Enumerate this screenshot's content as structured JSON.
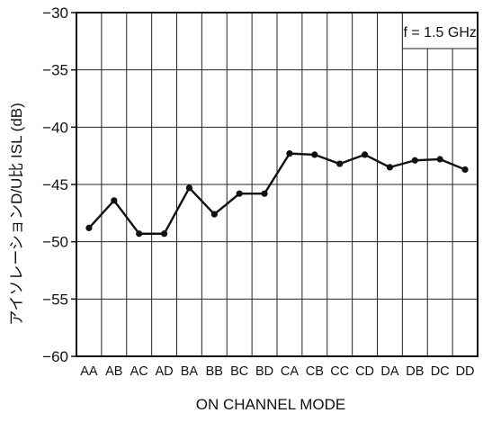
{
  "chart_data": {
    "type": "line",
    "title": "",
    "xlabel": "ON CHANNEL MODE",
    "ylabel": "アイソレーションD/U比 ISL (dB)",
    "ylim": [
      -60,
      -30
    ],
    "yticks": [
      "−30",
      "−35",
      "−40",
      "−45",
      "−50",
      "−55",
      "−60"
    ],
    "ytick_values": [
      -30,
      -35,
      -40,
      -45,
      -50,
      -55,
      -60
    ],
    "categories": [
      "AA",
      "AB",
      "AC",
      "AD",
      "BA",
      "BB",
      "BC",
      "BD",
      "CA",
      "CB",
      "CC",
      "CD",
      "DA",
      "DB",
      "DC",
      "DD"
    ],
    "series": [
      {
        "values": [
          -48.8,
          -46.4,
          -49.3,
          -49.3,
          -45.3,
          -47.6,
          -45.8,
          -45.8,
          -42.3,
          -42.4,
          -43.2,
          -42.4,
          -43.5,
          -42.9,
          -42.8,
          -43.7
        ],
        "color": "#111111",
        "marker": "dot"
      }
    ],
    "annotations": [
      {
        "text": "f = 1.5 GHz",
        "position": "top-right",
        "boxed": true
      }
    ],
    "grid": true
  }
}
